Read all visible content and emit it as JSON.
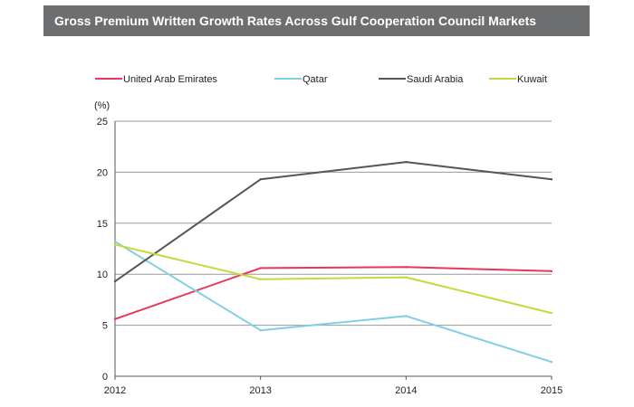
{
  "header": {
    "title": "Gross  Premium Written Growth Rates Across  Gulf Cooperation  Council Markets"
  },
  "chart_data": {
    "type": "line",
    "title": "Gross  Premium Written Growth Rates Across  Gulf Cooperation  Council Markets",
    "xlabel": "",
    "ylabel": "(%)",
    "categories": [
      "2012",
      "2013",
      "2014",
      "2015"
    ],
    "ylim": [
      0,
      25
    ],
    "yticks": [
      0,
      5,
      10,
      15,
      20,
      25
    ],
    "grid": true,
    "legend_position": "top",
    "series": [
      {
        "name": "United Arab Emirates",
        "color": "#e8375a",
        "values": [
          5.6,
          10.6,
          10.7,
          10.3
        ]
      },
      {
        "name": "Qatar",
        "color": "#7fd0e6",
        "values": [
          13.2,
          4.5,
          5.9,
          1.4
        ]
      },
      {
        "name": "Saudi Arabia",
        "color": "#555555",
        "values": [
          9.3,
          19.3,
          21.0,
          19.3
        ]
      },
      {
        "name": "Kuwait",
        "color": "#c8d83a",
        "values": [
          12.9,
          9.5,
          9.7,
          6.2
        ]
      }
    ]
  }
}
